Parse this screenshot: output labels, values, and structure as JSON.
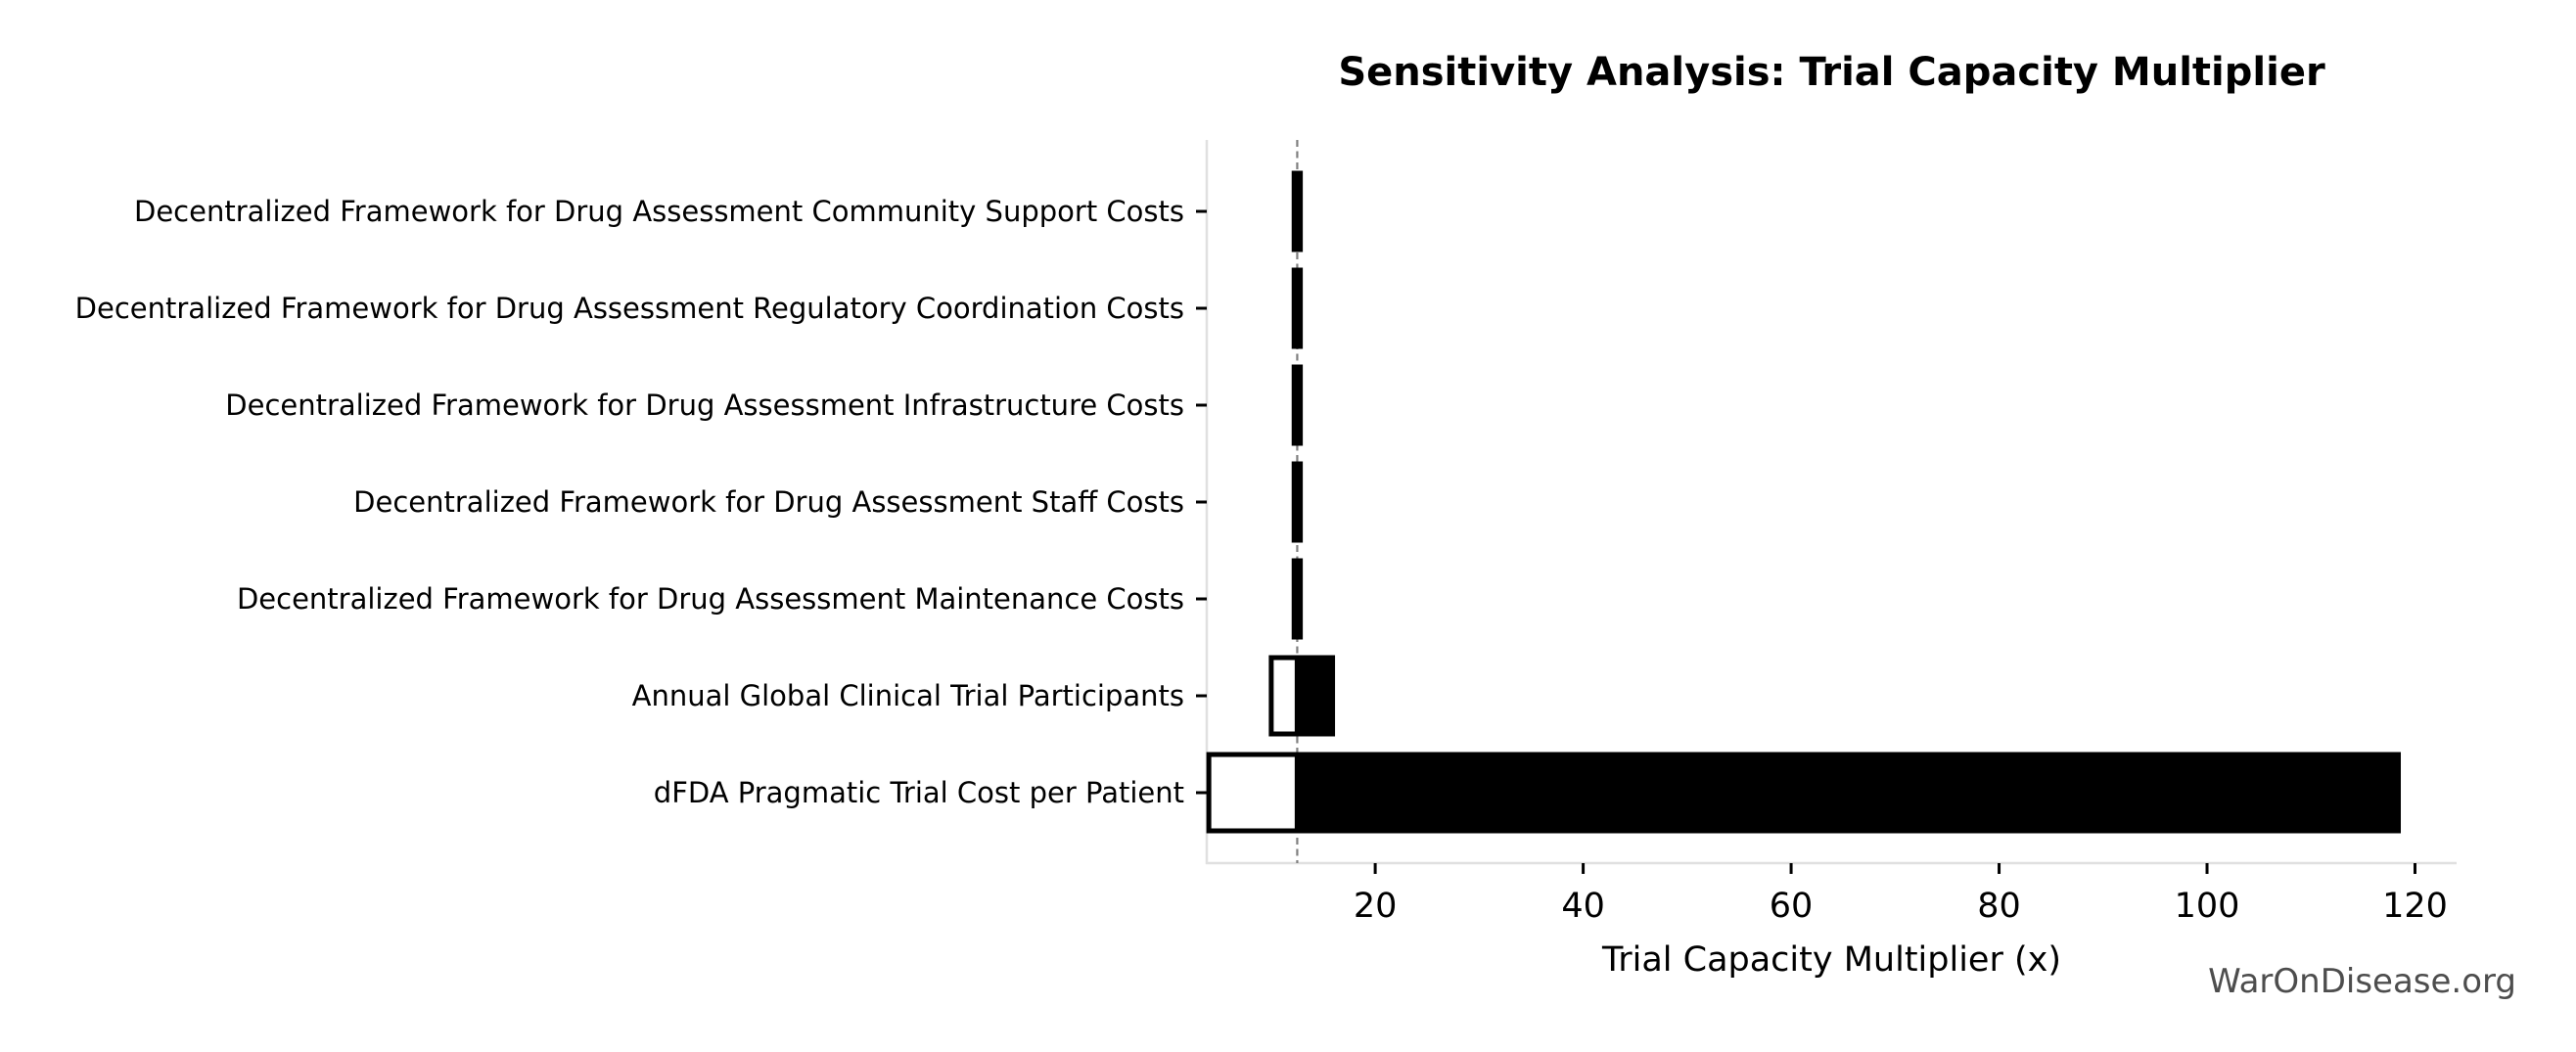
{
  "page": {
    "background": "#ffffff"
  },
  "chart_data": {
    "type": "bar",
    "orientation": "horizontal",
    "subtype": "tornado-sensitivity",
    "title": "Sensitivity Analysis: Trial Capacity Multiplier",
    "xlabel": "Trial Capacity Multiplier (x)",
    "ylabel": "",
    "watermark": "WarOnDisease.org",
    "grid": false,
    "legend": false,
    "baseline": 12.5,
    "xlim": [
      3.8,
      124
    ],
    "x_ticks": [
      20,
      40,
      60,
      80,
      100,
      120
    ],
    "categories": [
      "Decentralized Framework for Drug Assessment Community Support Costs",
      "Decentralized Framework for Drug Assessment Regulatory Coordination Costs",
      "Decentralized Framework for Drug Assessment Infrastructure Costs",
      "Decentralized Framework for Drug Assessment Staff Costs",
      "Decentralized Framework for Drug Assessment Maintenance Costs",
      "Annual Global Clinical Trial Participants",
      "dFDA Pragmatic Trial Cost per Patient"
    ],
    "series": [
      {
        "name": "low",
        "fill": "#ffffff",
        "values": [
          12.2,
          12.2,
          12.2,
          12.2,
          12.2,
          10.0,
          4.0
        ]
      },
      {
        "name": "high",
        "fill": "#000000",
        "values": [
          12.8,
          12.8,
          12.8,
          12.8,
          12.8,
          15.9,
          118.4
        ]
      }
    ],
    "colors": {
      "bar_edge": "#000000",
      "baseline_line": "#7f7f7f",
      "spine": "#e0e0e0",
      "tick_mark": "#000000",
      "text": "#000000",
      "watermark": "#4d4d4d"
    }
  }
}
